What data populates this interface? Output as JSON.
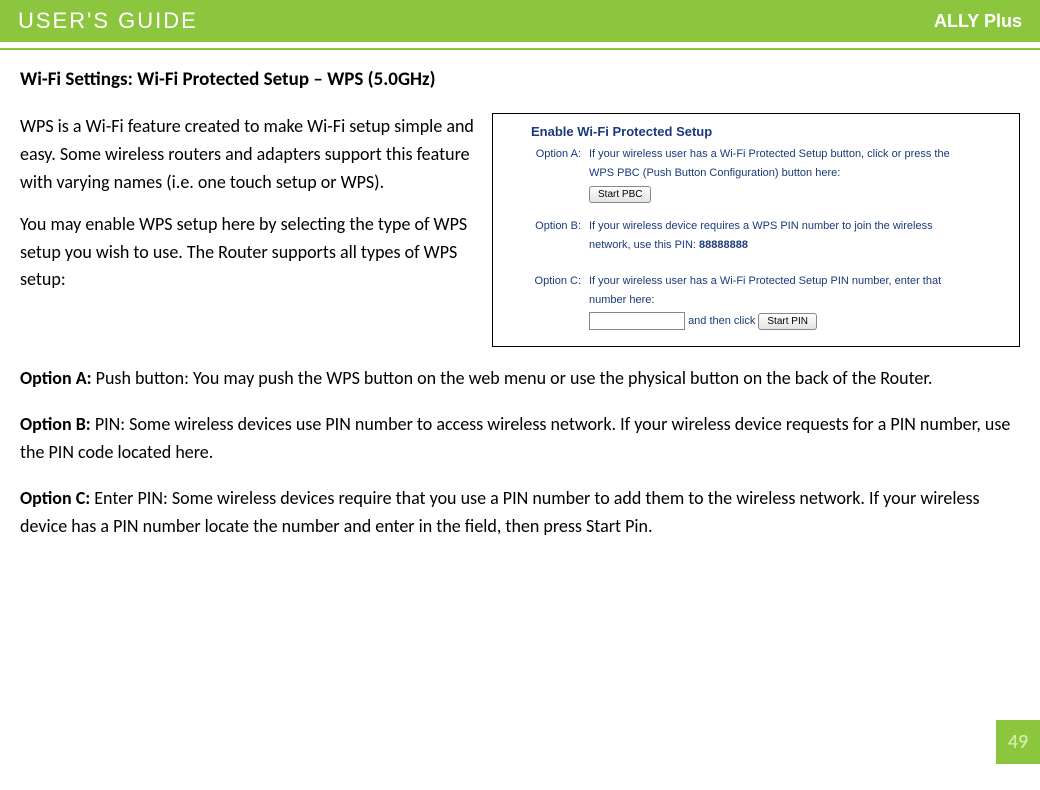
{
  "header": {
    "title": "USER'S GUIDE",
    "brand": "ALLY Plus",
    "bar_color": "#8cc63f",
    "title_color": "#ffffff"
  },
  "section": {
    "heading": "Wi-Fi Settings: Wi-Fi Protected Setup – WPS (5.0GHz)",
    "intro_p1": "WPS is a Wi-Fi feature created to make Wi-Fi setup simple and easy.  Some wireless routers and adapters support this feature with varying names (i.e. one touch setup or WPS).",
    "intro_p2": "You may enable WPS setup here by selecting the type of WPS setup you wish to use. The Router supports all types of WPS setup:",
    "optA_label": "Option A:",
    "optA_text": " Push button: You may push the WPS button on the web menu or use the physical button on the back of the Router.",
    "optB_label": "Option B:",
    "optB_text": " PIN: Some wireless devices use PIN number to access wireless network.  If your wireless device requests for a PIN number, use the PIN code located here.",
    "optC_label": "Option C:",
    "optC_text": " Enter PIN: Some wireless devices require that you use a PIN number to add them to the wireless network.  If your wireless device has a PIN number locate the number and enter in the field, then press Start Pin."
  },
  "panel": {
    "title": "Enable Wi-Fi Protected Setup",
    "title_color": "#1a3a7a",
    "text_color": "#1a3a7a",
    "optA": {
      "label": "Option A:",
      "line1": "If your wireless user has a Wi-Fi Protected Setup button, click or press the",
      "line2": "WPS PBC (Push Button Configuration) button here:",
      "button": "Start PBC"
    },
    "optB": {
      "label": "Option B:",
      "line1": "If your wireless device requires a WPS PIN number to join the wireless",
      "line2_prefix": "network, use this PIN: ",
      "pin": "88888888"
    },
    "optC": {
      "label": "Option C:",
      "line1": "If your wireless user has a Wi-Fi Protected Setup PIN number, enter that",
      "line2": "number here:",
      "and_then": " and then click ",
      "button": "Start PIN"
    }
  },
  "page_number": "49",
  "colors": {
    "green": "#8cc63f",
    "dark_blue": "#1a3a7a",
    "page_num_text": "#d9f0b8"
  }
}
